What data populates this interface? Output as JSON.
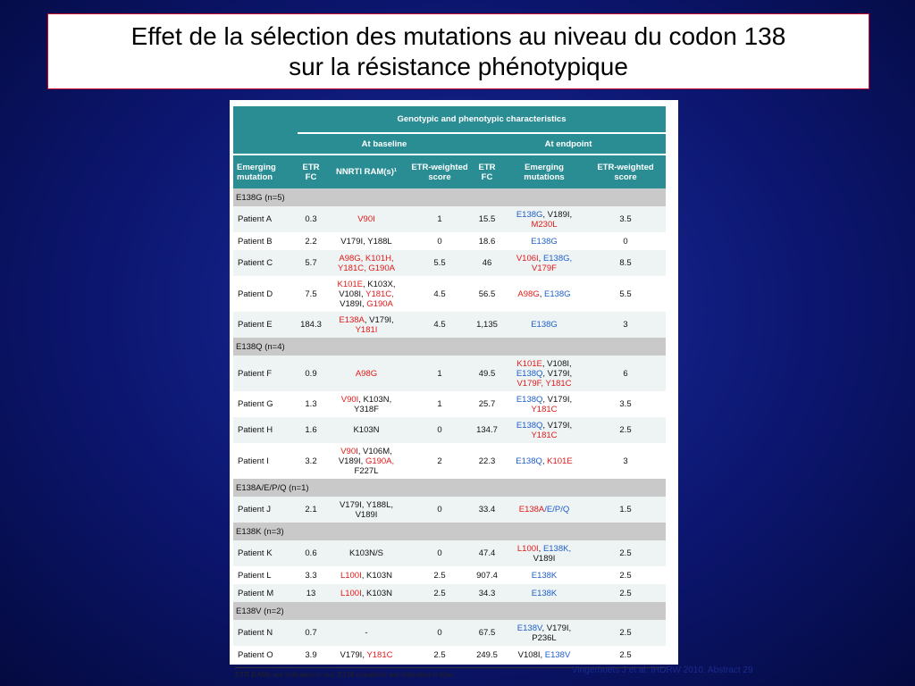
{
  "title_line1": "Effet de la sélection des mutations au niveau du codon 138",
  "title_line2": "sur la résistance phénotypique",
  "table": {
    "super_header": "Genotypic and phenotypic characteristics",
    "baseline_header": "At baseline",
    "endpoint_header": "At endpoint",
    "col_emerging_mutation": [
      "Emerging",
      "mutation"
    ],
    "col_etr_fc": [
      "ETR",
      "FC"
    ],
    "col_nnrti_rams": "NNRTI RAM(s)¹",
    "col_etr_weighted": [
      "ETR-weighted",
      "score"
    ],
    "col_etr_fc2": [
      "ETR",
      "FC"
    ],
    "col_emerging_mutations": [
      "Emerging",
      "mutations"
    ],
    "col_etr_weighted2": [
      "ETR-weighted",
      "score"
    ],
    "groups": [
      {
        "label": "E138G (n=5)",
        "rows": [
          {
            "patient": "Patient A",
            "fc": "0.3",
            "rams": [
              [
                {
                  "t": "V90I",
                  "c": "r"
                }
              ]
            ],
            "score": "1",
            "fc2": "15.5",
            "emerging": [
              [
                {
                  "t": "E138G",
                  "c": "b"
                },
                {
                  "t": ", V189I,",
                  "c": "k"
                }
              ],
              [
                {
                  "t": "M230L",
                  "c": "r"
                }
              ]
            ],
            "score2": "3.5"
          },
          {
            "patient": "Patient B",
            "fc": "2.2",
            "rams": [
              [
                {
                  "t": "V179I, Y188L",
                  "c": "k"
                }
              ]
            ],
            "score": "0",
            "fc2": "18.6",
            "emerging": [
              [
                {
                  "t": "E138G",
                  "c": "b"
                }
              ]
            ],
            "score2": "0"
          },
          {
            "patient": "Patient C",
            "fc": "5.7",
            "rams": [
              [
                {
                  "t": "A98G, K101H,",
                  "c": "r"
                }
              ],
              [
                {
                  "t": "Y181C, G190A",
                  "c": "r"
                }
              ]
            ],
            "score": "5.5",
            "fc2": "46",
            "emerging": [
              [
                {
                  "t": "V106I",
                  "c": "r"
                },
                {
                  "t": ", ",
                  "c": "k"
                },
                {
                  "t": "E138G,",
                  "c": "b"
                }
              ],
              [
                {
                  "t": "V179F",
                  "c": "r"
                }
              ]
            ],
            "score2": "8.5"
          },
          {
            "patient": "Patient D",
            "fc": "7.5",
            "rams": [
              [
                {
                  "t": "K101E",
                  "c": "r"
                },
                {
                  "t": ", K103X,",
                  "c": "k"
                }
              ],
              [
                {
                  "t": "V108I, ",
                  "c": "k"
                },
                {
                  "t": "Y181C,",
                  "c": "r"
                }
              ],
              [
                {
                  "t": "V189I, ",
                  "c": "k"
                },
                {
                  "t": "G190A",
                  "c": "r"
                }
              ]
            ],
            "score": "4.5",
            "fc2": "56.5",
            "emerging": [
              [
                {
                  "t": "A98G",
                  "c": "r"
                },
                {
                  "t": ", ",
                  "c": "k"
                },
                {
                  "t": "E138G",
                  "c": "b"
                }
              ]
            ],
            "score2": "5.5"
          },
          {
            "patient": "Patient E",
            "fc": "184.3",
            "rams": [
              [
                {
                  "t": "E138A",
                  "c": "r"
                },
                {
                  "t": ", V179I,",
                  "c": "k"
                }
              ],
              [
                {
                  "t": "Y181I",
                  "c": "r"
                }
              ]
            ],
            "score": "4.5",
            "fc2": "1,135",
            "emerging": [
              [
                {
                  "t": "E138G",
                  "c": "b"
                }
              ]
            ],
            "score2": "3"
          }
        ]
      },
      {
        "label": "E138Q (n=4)",
        "rows": [
          {
            "patient": "Patient F",
            "fc": "0.9",
            "rams": [
              [
                {
                  "t": "A98G",
                  "c": "r"
                }
              ]
            ],
            "score": "1",
            "fc2": "49.5",
            "emerging": [
              [
                {
                  "t": "K101E",
                  "c": "r"
                },
                {
                  "t": ", V108I,",
                  "c": "k"
                }
              ],
              [
                {
                  "t": "E138Q",
                  "c": "b"
                },
                {
                  "t": ", V179I,",
                  "c": "k"
                }
              ],
              [
                {
                  "t": "V179F, Y181C",
                  "c": "r"
                }
              ]
            ],
            "score2": "6"
          },
          {
            "patient": "Patient G",
            "fc": "1.3",
            "rams": [
              [
                {
                  "t": "V90I",
                  "c": "r"
                },
                {
                  "t": ", K103N,",
                  "c": "k"
                }
              ],
              [
                {
                  "t": "Y318F",
                  "c": "k"
                }
              ]
            ],
            "score": "1",
            "fc2": "25.7",
            "emerging": [
              [
                {
                  "t": "E138Q",
                  "c": "b"
                },
                {
                  "t": ", V179I,",
                  "c": "k"
                }
              ],
              [
                {
                  "t": "Y181C",
                  "c": "r"
                }
              ]
            ],
            "score2": "3.5"
          },
          {
            "patient": "Patient H",
            "fc": "1.6",
            "rams": [
              [
                {
                  "t": "K103N",
                  "c": "k"
                }
              ]
            ],
            "score": "0",
            "fc2": "134.7",
            "emerging": [
              [
                {
                  "t": "E138Q",
                  "c": "b"
                },
                {
                  "t": ", V179I,",
                  "c": "k"
                }
              ],
              [
                {
                  "t": "Y181C",
                  "c": "r"
                }
              ]
            ],
            "score2": "2.5"
          },
          {
            "patient": "Patient I",
            "fc": "3.2",
            "rams": [
              [
                {
                  "t": "V90I",
                  "c": "r"
                },
                {
                  "t": ", V106M,",
                  "c": "k"
                }
              ],
              [
                {
                  "t": "V189I, ",
                  "c": "k"
                },
                {
                  "t": "G190A,",
                  "c": "r"
                }
              ],
              [
                {
                  "t": "F227L",
                  "c": "k"
                }
              ]
            ],
            "score": "2",
            "fc2": "22.3",
            "emerging": [
              [
                {
                  "t": "E138Q",
                  "c": "b"
                },
                {
                  "t": ", ",
                  "c": "k"
                },
                {
                  "t": "K101E",
                  "c": "r"
                }
              ]
            ],
            "score2": "3"
          }
        ]
      },
      {
        "label": "E138A/E/P/Q (n=1)",
        "rows": [
          {
            "patient": "Patient J",
            "fc": "2.1",
            "rams": [
              [
                {
                  "t": "V179I, Y188L,",
                  "c": "k"
                }
              ],
              [
                {
                  "t": "V189I",
                  "c": "k"
                }
              ]
            ],
            "score": "0",
            "fc2": "33.4",
            "emerging": [
              [
                {
                  "t": "E138A",
                  "c": "r"
                },
                {
                  "t": "/E/P/Q",
                  "c": "b"
                }
              ]
            ],
            "score2": "1.5"
          }
        ]
      },
      {
        "label": "E138K (n=3)",
        "rows": [
          {
            "patient": "Patient K",
            "fc": "0.6",
            "rams": [
              [
                {
                  "t": "K103N/S",
                  "c": "k"
                }
              ]
            ],
            "score": "0",
            "fc2": "47.4",
            "emerging": [
              [
                {
                  "t": "L100I",
                  "c": "r"
                },
                {
                  "t": ", ",
                  "c": "k"
                },
                {
                  "t": "E138K,",
                  "c": "b"
                }
              ],
              [
                {
                  "t": "V189I",
                  "c": "k"
                }
              ]
            ],
            "score2": "2.5"
          },
          {
            "patient": "Patient L",
            "fc": "3.3",
            "rams": [
              [
                {
                  "t": "L100I",
                  "c": "r"
                },
                {
                  "t": ", K103N",
                  "c": "k"
                }
              ]
            ],
            "score": "2.5",
            "fc2": "907.4",
            "emerging": [
              [
                {
                  "t": "E138K",
                  "c": "b"
                }
              ]
            ],
            "score2": "2.5"
          },
          {
            "patient": "Patient M",
            "fc": "13",
            "rams": [
              [
                {
                  "t": "L100I",
                  "c": "r"
                },
                {
                  "t": ", K103N",
                  "c": "k"
                }
              ]
            ],
            "score": "2.5",
            "fc2": "34.3",
            "emerging": [
              [
                {
                  "t": "E138K",
                  "c": "b"
                }
              ]
            ],
            "score2": "2.5"
          }
        ]
      },
      {
        "label": "E138V (n=2)",
        "rows": [
          {
            "patient": "Patient N",
            "fc": "0.7",
            "rams": [
              [
                {
                  "t": "-",
                  "c": "k"
                }
              ]
            ],
            "score": "0",
            "fc2": "67.5",
            "emerging": [
              [
                {
                  "t": "E138V",
                  "c": "b"
                },
                {
                  "t": ", V179I,",
                  "c": "k"
                }
              ],
              [
                {
                  "t": "P236L",
                  "c": "k"
                }
              ]
            ],
            "score2": "2.5"
          },
          {
            "patient": "Patient O",
            "fc": "3.9",
            "rams": [
              [
                {
                  "t": "V179I, ",
                  "c": "k"
                },
                {
                  "t": "Y181C",
                  "c": "r"
                }
              ]
            ],
            "score": "2.5",
            "fc2": "249.5",
            "emerging": [
              [
                {
                  "t": "V108I, ",
                  "c": "k"
                },
                {
                  "t": "E138V",
                  "c": "b"
                }
              ]
            ],
            "score2": "2.5"
          }
        ]
      }
    ],
    "footnote": "ETR RAMs are indicated in red; E138 mutations are indicated in blue"
  },
  "source": "Vingerhoets J et al. IHDRW 2010. Abstract 29",
  "colors": {
    "ram_red": "#e31919",
    "e138_blue": "#1e5fc7",
    "header_teal": "#2a8d94",
    "group_grey": "#c9c9c9"
  }
}
